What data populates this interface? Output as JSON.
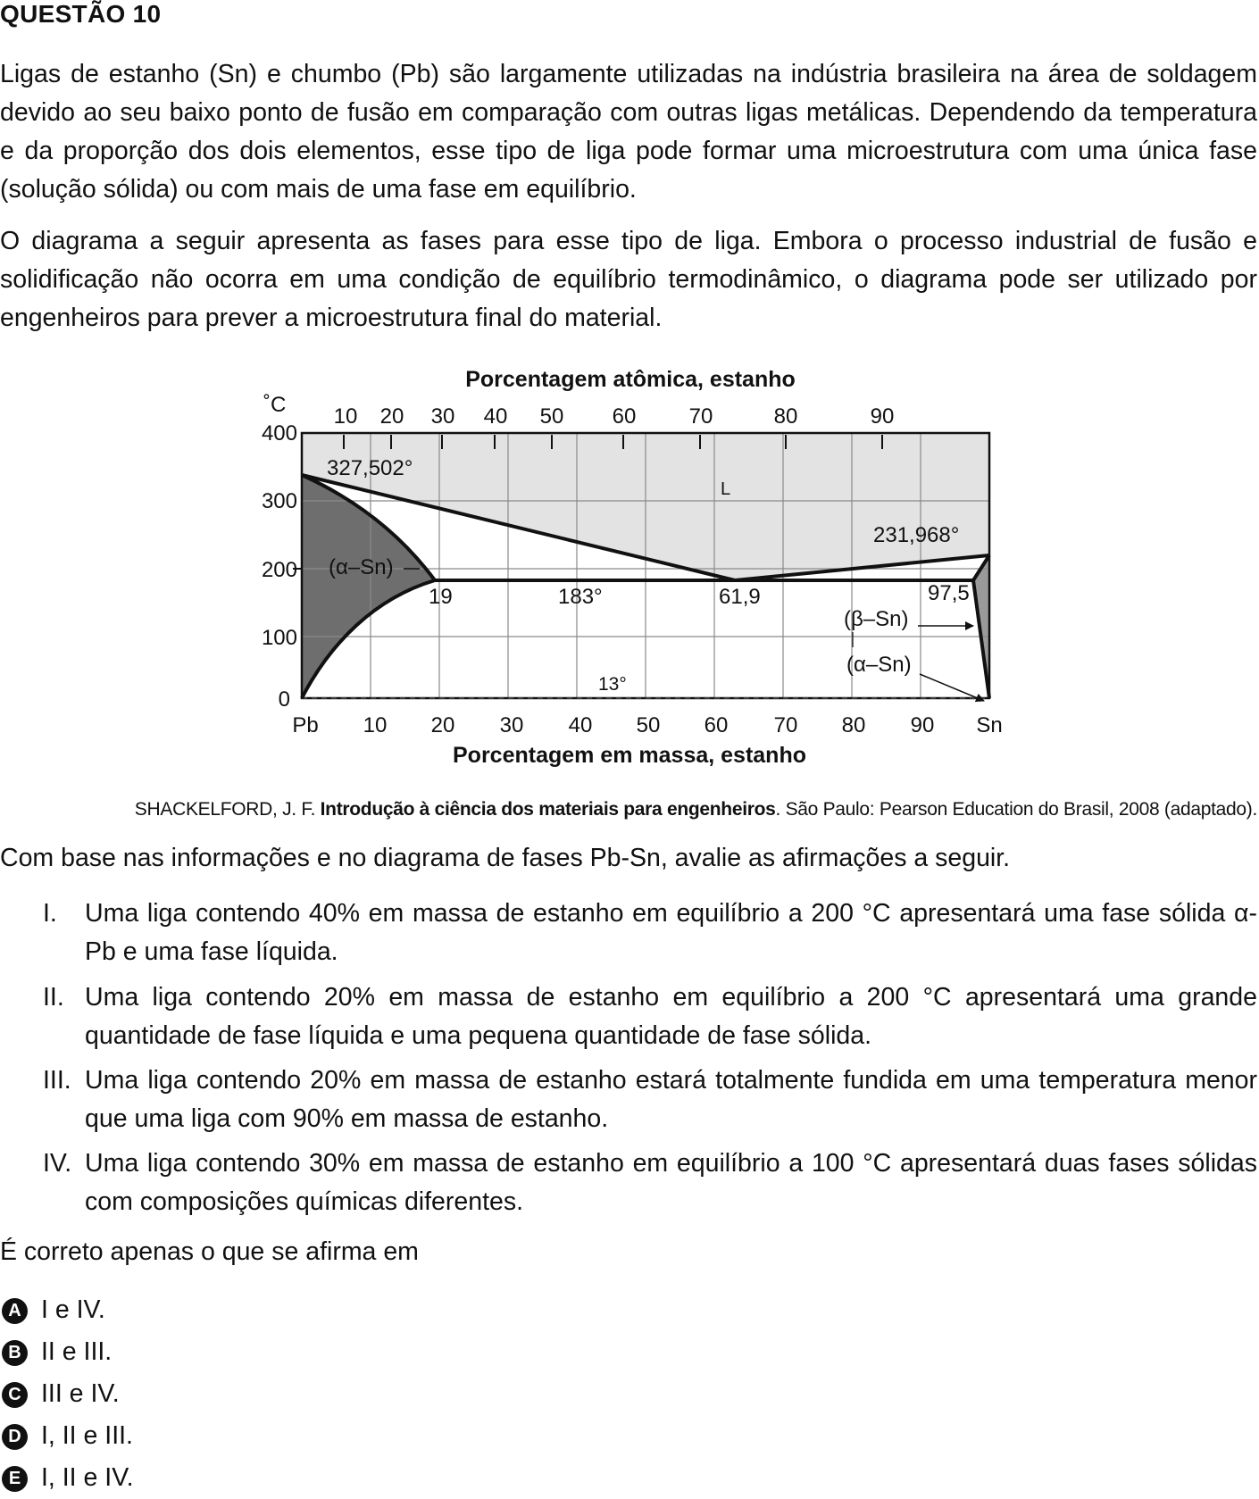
{
  "title": "QUESTÃO 10",
  "paragraphs": [
    "Ligas de estanho (Sn) e chumbo (Pb) são largamente utilizadas na indústria brasileira na área de soldagem devido ao seu baixo ponto de fusão em comparação com outras ligas metálicas. Dependendo da temperatura e da proporção dos dois elementos, esse tipo de liga pode formar uma microestrutura com uma única fase (solução sólida) ou com mais de uma fase em equilíbrio.",
    "O diagrama a seguir apresenta as fases para esse tipo de liga. Embora o processo industrial de fusão e solidificação não ocorra em uma condição de equilíbrio termodinâmico, o diagrama pode ser utilizado por engenheiros para prever a microestrutura final do material."
  ],
  "diagram": {
    "top_axis_title": "Porcentagem atômica, estanho",
    "top_ticks": [
      "10",
      "20",
      "30",
      "40",
      "50",
      "60",
      "70",
      "80",
      "90"
    ],
    "y_unit": "˚C",
    "y_ticks": [
      "400",
      "300",
      "200",
      "100",
      "0"
    ],
    "bottom_ticks": [
      "Pb",
      "10",
      "20",
      "30",
      "40",
      "50",
      "60",
      "70",
      "80",
      "90",
      "Sn"
    ],
    "bottom_axis_title": "Porcentagem em massa, estanho",
    "labels": {
      "pb_melting": "327,502°",
      "liquid": "L",
      "sn_melting": "231,968°",
      "alpha_pb": "(α–Sn)",
      "solubility_left": "19",
      "eutectic_temp": "183°",
      "eutectic_comp": "61,9",
      "solubility_right": "97,5",
      "beta_sn": "(β–Sn)",
      "alpha_sn": "(α–Sn)",
      "transition_temp": "13°"
    }
  },
  "source": {
    "prefix": "SHACKELFORD, J. F. ",
    "book": "Introdução à ciência dos materiais para engenheiros",
    "suffix": ". São Paulo: Pearson Education do Brasil, 2008 (adaptado)."
  },
  "prompt": "Com base nas informações e no diagrama de fases Pb-Sn, avalie as afirmações a seguir.",
  "statements": [
    {
      "num": "I.",
      "text": "Uma liga contendo 40% em massa de estanho em equilíbrio a 200 °C apresentará uma fase sólida α-Pb e uma fase líquida."
    },
    {
      "num": "II.",
      "text": "Uma liga contendo 20% em massa de estanho em equilíbrio a 200 °C apresentará uma grande quantidade de fase líquida e uma pequena quantidade de fase sólida."
    },
    {
      "num": "III.",
      "text": "Uma liga contendo 20% em massa de estanho estará totalmente fundida em uma temperatura menor que uma liga com 90% em massa de estanho."
    },
    {
      "num": "IV.",
      "text": "Uma liga contendo 30% em massa de estanho em equilíbrio a 100 °C apresentará duas fases sólidas com composições químicas diferentes."
    }
  ],
  "question": "É correto apenas o que se afirma em",
  "options": [
    {
      "letter": "A",
      "text": "I e IV."
    },
    {
      "letter": "B",
      "text": "II e III."
    },
    {
      "letter": "C",
      "text": "III e IV."
    },
    {
      "letter": "D",
      "text": "I, II e III."
    },
    {
      "letter": "E",
      "text": "I, II e IV."
    }
  ]
}
